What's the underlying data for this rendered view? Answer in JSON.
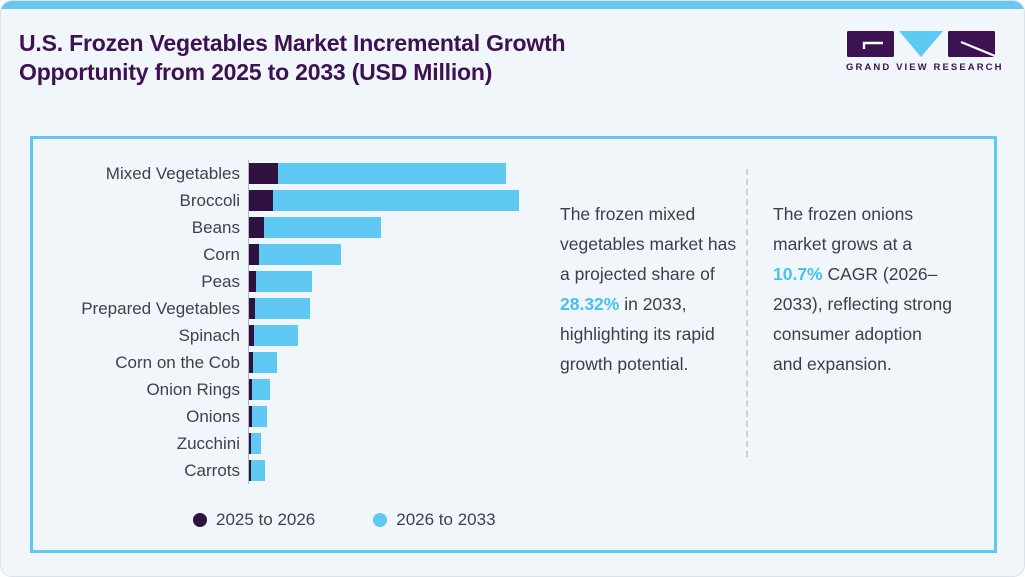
{
  "page": {
    "title_lines": [
      "U.S. Frozen Vegetables Market Incremental Growth",
      "Opportunity from 2025 to 2033 (USD Million)"
    ]
  },
  "logo": {
    "wordmark": "GRAND VIEW RESEARCH"
  },
  "colors": {
    "topbar_blue": "#68c6ef",
    "panel_border_blue": "#5ec8f2",
    "title_purple": "#3d1252",
    "bar_dark_purple": "#2f1240",
    "bar_light_blue": "#5fc9f3",
    "highlight_blue": "#45c2f0",
    "body_text": "#3f3c4a",
    "background": "#f0f6fa"
  },
  "chart_data": {
    "type": "bar",
    "orientation": "horizontal",
    "stacked": true,
    "title": "U.S. Frozen Vegetables Market Incremental Growth Opportunity from 2025 to 2033 (USD Million)",
    "value_units": "USD Million",
    "value_axis_note": "no numeric axis, ticks or gridlines shown; values below are relative lengths estimated from bar pixels",
    "legend_position": "bottom",
    "categories": [
      "Mixed Vegetables",
      "Broccoli",
      "Beans",
      "Corn",
      "Peas",
      "Prepared Vegetables",
      "Spinach",
      "Corn on the Cob",
      "Onion Rings",
      "Onions",
      "Zucchini",
      "Carrots"
    ],
    "series": [
      {
        "name": "2025 to 2026",
        "color": "#2f1240",
        "values": [
          29,
          24,
          15,
          10,
          7,
          6,
          5,
          4,
          3,
          3,
          2,
          2
        ]
      },
      {
        "name": "2026 to 2033",
        "color": "#5fc9f3",
        "values": [
          228,
          246,
          117,
          82,
          56,
          55,
          44,
          24,
          18,
          15,
          10,
          14
        ]
      }
    ]
  },
  "annotations": [
    {
      "segments": [
        {
          "text": "The frozen mixed vegetables market has a projected share of ",
          "highlight": false
        },
        {
          "text": "28.32%",
          "highlight": true
        },
        {
          "text": " in 2033, highlighting its rapid growth potential.",
          "highlight": false
        }
      ]
    },
    {
      "segments": [
        {
          "text": "The frozen onions market grows at a ",
          "highlight": false
        },
        {
          "text": "10.7%",
          "highlight": true
        },
        {
          "text": " CAGR (2026–2033), reflecting strong consumer adoption and expansion.",
          "highlight": false
        }
      ]
    }
  ]
}
